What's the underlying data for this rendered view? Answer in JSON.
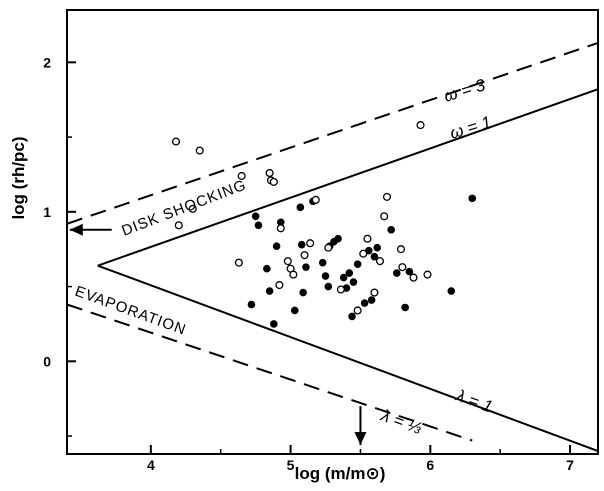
{
  "chart_data": {
    "type": "scatter",
    "title": "",
    "xlabel": "log (m/m⊙)",
    "ylabel": "log (rh/pc)",
    "xlim": [
      3.4,
      7.2
    ],
    "ylim": [
      -0.62,
      2.35
    ],
    "grid": false,
    "x_ticks": [
      4,
      5,
      6,
      7
    ],
    "y_ticks": [
      0,
      1,
      2
    ],
    "x_tick_labels": [
      "4",
      "5",
      "6",
      "7"
    ],
    "y_tick_labels": [
      "0",
      "1",
      "2"
    ],
    "region_labels": {
      "disk_shocking": "DISK SHOCKING",
      "evaporation": "EVAPORATION"
    },
    "line_labels": {
      "omega3": "ω = 3",
      "omega1": "ω = 1",
      "lambda1": "λ = 1",
      "lambda_third": "λ = ⅓"
    },
    "lines": [
      {
        "name": "ω = 3",
        "style": "dashed",
        "points": [
          [
            3.4,
            0.92
          ],
          [
            7.2,
            2.13
          ]
        ]
      },
      {
        "name": "ω = 1",
        "style": "solid",
        "points": [
          [
            3.62,
            0.64
          ],
          [
            7.2,
            1.82
          ]
        ]
      },
      {
        "name": "λ = 1",
        "style": "solid",
        "points": [
          [
            3.62,
            0.64
          ],
          [
            7.2,
            -0.6
          ]
        ]
      },
      {
        "name": "λ = ⅓",
        "style": "dashed",
        "points": [
          [
            3.4,
            0.38
          ],
          [
            6.3,
            -0.53
          ]
        ]
      }
    ],
    "arrows": [
      {
        "from": [
          3.72,
          0.88
        ],
        "to": [
          3.42,
          0.88
        ]
      },
      {
        "from": [
          5.5,
          -0.3
        ],
        "to": [
          5.5,
          -0.56
        ]
      }
    ],
    "series": [
      {
        "marker": "filled",
        "points": [
          [
            4.72,
            0.38
          ],
          [
            4.75,
            0.97
          ],
          [
            4.77,
            0.91
          ],
          [
            4.83,
            0.62
          ],
          [
            4.85,
            0.47
          ],
          [
            4.88,
            0.25
          ],
          [
            4.9,
            0.77
          ],
          [
            4.93,
            0.93
          ],
          [
            5.03,
            0.34
          ],
          [
            5.07,
            1.03
          ],
          [
            5.08,
            0.78
          ],
          [
            5.09,
            0.46
          ],
          [
            5.11,
            0.63
          ],
          [
            5.16,
            1.07
          ],
          [
            5.23,
            0.66
          ],
          [
            5.25,
            0.57
          ],
          [
            5.27,
            0.5
          ],
          [
            5.28,
            0.77
          ],
          [
            5.31,
            0.8
          ],
          [
            5.34,
            0.82
          ],
          [
            5.38,
            0.56
          ],
          [
            5.4,
            0.49
          ],
          [
            5.42,
            0.59
          ],
          [
            5.44,
            0.3
          ],
          [
            5.45,
            0.53
          ],
          [
            5.48,
            0.65
          ],
          [
            5.53,
            0.39
          ],
          [
            5.56,
            0.74
          ],
          [
            5.58,
            0.41
          ],
          [
            5.6,
            0.7
          ],
          [
            5.62,
            0.76
          ],
          [
            5.72,
            0.88
          ],
          [
            5.76,
            0.59
          ],
          [
            5.82,
            0.36
          ],
          [
            5.85,
            0.6
          ],
          [
            6.15,
            0.47
          ],
          [
            6.3,
            1.09
          ]
        ]
      },
      {
        "marker": "open",
        "points": [
          [
            4.18,
            1.47
          ],
          [
            4.2,
            0.91
          ],
          [
            4.3,
            1.02
          ],
          [
            4.35,
            1.41
          ],
          [
            4.63,
            0.66
          ],
          [
            4.65,
            1.24
          ],
          [
            4.85,
            1.26
          ],
          [
            4.86,
            1.21
          ],
          [
            4.88,
            1.2
          ],
          [
            4.92,
            0.51
          ],
          [
            4.93,
            0.89
          ],
          [
            4.98,
            0.67
          ],
          [
            5.0,
            0.62
          ],
          [
            5.02,
            0.58
          ],
          [
            5.1,
            0.71
          ],
          [
            5.14,
            0.79
          ],
          [
            5.18,
            1.08
          ],
          [
            5.27,
            0.76
          ],
          [
            5.36,
            0.48
          ],
          [
            5.48,
            0.34
          ],
          [
            5.52,
            0.72
          ],
          [
            5.55,
            0.82
          ],
          [
            5.6,
            0.46
          ],
          [
            5.64,
            0.67
          ],
          [
            5.67,
            0.97
          ],
          [
            5.69,
            1.1
          ],
          [
            5.79,
            0.75
          ],
          [
            5.8,
            0.63
          ],
          [
            5.88,
            0.56
          ],
          [
            5.93,
            1.58
          ],
          [
            5.98,
            0.58
          ]
        ]
      }
    ]
  }
}
